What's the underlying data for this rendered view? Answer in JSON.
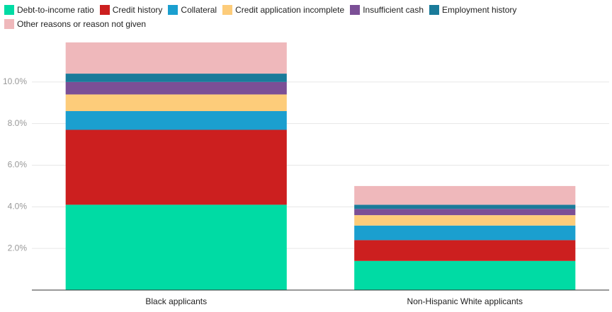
{
  "chart_data": {
    "type": "stacked_bar",
    "categories": [
      "Black applicants",
      "Non-Hispanic White applicants"
    ],
    "series": [
      {
        "name": "Debt-to-income ratio",
        "color": "#00dba4",
        "values": [
          4.1,
          1.4
        ]
      },
      {
        "name": "Credit history",
        "color": "#cc1f1f",
        "values": [
          3.6,
          1.0
        ]
      },
      {
        "name": "Collateral",
        "color": "#1b9fcf",
        "values": [
          0.9,
          0.7
        ]
      },
      {
        "name": "Credit application incomplete",
        "color": "#fdcc7a",
        "values": [
          0.8,
          0.5
        ]
      },
      {
        "name": "Insufficient cash",
        "color": "#7b4f96",
        "values": [
          0.6,
          0.3
        ]
      },
      {
        "name": "Employment history",
        "color": "#1a7b9a",
        "values": [
          0.4,
          0.2
        ]
      },
      {
        "name": "Other reasons or reason not given",
        "color": "#efb8bb",
        "values": [
          1.5,
          0.9
        ]
      }
    ],
    "ylim": [
      0,
      12
    ],
    "yticks": [
      {
        "value": 2,
        "label": "2.0%"
      },
      {
        "value": 4,
        "label": "4.0%"
      },
      {
        "value": 6,
        "label": "6.0%"
      },
      {
        "value": 8,
        "label": "8.0%"
      },
      {
        "value": 10,
        "label": "10.0%"
      }
    ],
    "grid": true,
    "legend": "top"
  }
}
